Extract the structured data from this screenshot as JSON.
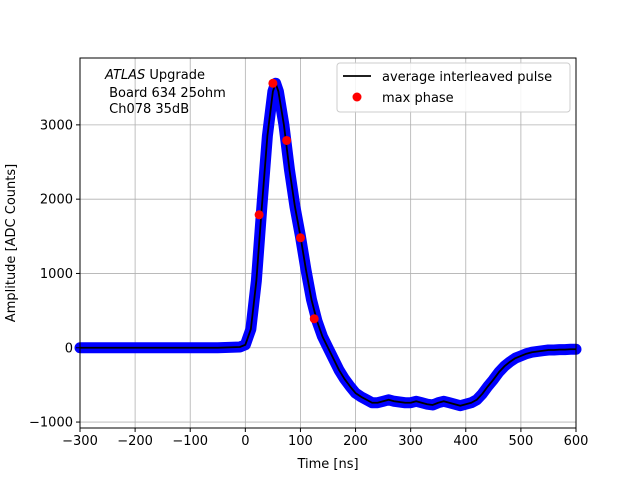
{
  "chart_data": {
    "type": "line",
    "xlabel": "Time [ns]",
    "ylabel": "Amplitude [ADC Counts]",
    "xlim": [
      -300,
      600
    ],
    "ylim": [
      -1080,
      3900
    ],
    "xticks": [
      -300,
      -200,
      -100,
      0,
      100,
      200,
      300,
      400,
      500,
      600
    ],
    "yticks": [
      -1000,
      0,
      1000,
      2000,
      3000
    ],
    "grid": true,
    "legend_position": "upper-right",
    "annotation": {
      "italic": "ATLAS",
      "line1_rest": " Upgrade",
      "line2": " Board 634 25ohm",
      "line3": " Ch078 35dB"
    },
    "series": [
      {
        "name": "average interleaved pulse",
        "color": "#000000",
        "x": [
          -300,
          -250,
          -200,
          -150,
          -100,
          -50,
          -10,
          0,
          10,
          20,
          30,
          40,
          50,
          55,
          60,
          70,
          80,
          90,
          100,
          110,
          120,
          130,
          140,
          150,
          160,
          170,
          180,
          190,
          200,
          210,
          220,
          230,
          240,
          250,
          260,
          270,
          280,
          290,
          300,
          310,
          320,
          330,
          340,
          350,
          360,
          370,
          380,
          390,
          400,
          410,
          420,
          430,
          440,
          450,
          460,
          470,
          480,
          490,
          500,
          510,
          520,
          530,
          540,
          550,
          560,
          570,
          580,
          590,
          600
        ],
        "y": [
          0,
          0,
          0,
          0,
          0,
          0,
          10,
          40,
          250,
          900,
          1900,
          2850,
          3450,
          3560,
          3450,
          3000,
          2400,
          1900,
          1500,
          1050,
          650,
          360,
          150,
          0,
          -150,
          -300,
          -420,
          -520,
          -610,
          -660,
          -700,
          -740,
          -740,
          -720,
          -700,
          -720,
          -730,
          -740,
          -740,
          -720,
          -740,
          -760,
          -770,
          -740,
          -720,
          -740,
          -760,
          -780,
          -760,
          -740,
          -700,
          -620,
          -520,
          -430,
          -330,
          -250,
          -190,
          -140,
          -110,
          -80,
          -60,
          -50,
          -40,
          -30,
          -30,
          -25,
          -25,
          -20,
          -20
        ]
      },
      {
        "name": "max phase",
        "color": "#ff0000",
        "x": [
          25,
          50,
          75,
          100,
          125
        ],
        "y": [
          1790,
          3560,
          2790,
          1480,
          390
        ]
      }
    ],
    "scatter_color": "#0000ff"
  }
}
